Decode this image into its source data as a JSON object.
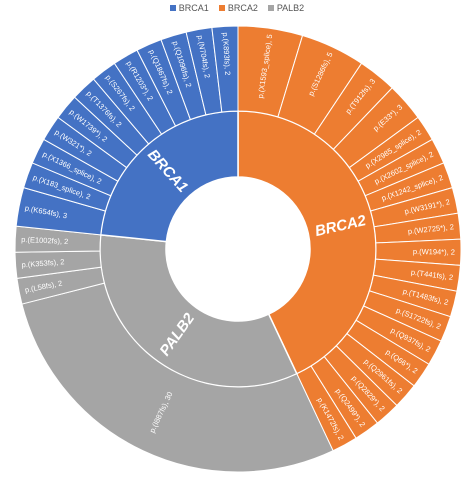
{
  "chart_data": {
    "type": "sunburst",
    "legend_position": "top",
    "legend": [
      {
        "label": "BRCA1",
        "color": "#4472C4"
      },
      {
        "label": "BRCA2",
        "color": "#ED7D31"
      },
      {
        "label": "PALB2",
        "color": "#A5A5A5"
      }
    ],
    "groups": [
      {
        "name": "BRCA2",
        "color": "#ED7D31",
        "children": [
          {
            "label": "p.(X1593_splice), 5",
            "value": 5
          },
          {
            "label": "p.(S1286fs), 5",
            "value": 5
          },
          {
            "label": "p.(T912fs), 3",
            "value": 3
          },
          {
            "label": "p.(E33*), 3",
            "value": 3
          },
          {
            "label": "p.(X2985_splice), 2",
            "value": 2
          },
          {
            "label": "p.(X2602_splice), 2",
            "value": 2
          },
          {
            "label": "p.(X1242_splice), 2",
            "value": 2
          },
          {
            "label": "p.(W3191*), 2",
            "value": 2
          },
          {
            "label": "p.(W2725*), 2",
            "value": 2
          },
          {
            "label": "p.(W194*), 2",
            "value": 2
          },
          {
            "label": "p.(T441fs), 2",
            "value": 2
          },
          {
            "label": "p.(T1483fs), 2",
            "value": 2
          },
          {
            "label": "p.(S1722fs), 2",
            "value": 2
          },
          {
            "label": "p.(Q937fs), 2",
            "value": 2
          },
          {
            "label": "p.(Q66*), 2",
            "value": 2
          },
          {
            "label": "p.(Q2961fs), 2",
            "value": 2
          },
          {
            "label": "p.(Q2829*), 2",
            "value": 2
          },
          {
            "label": "p.(Q2499*), 2",
            "value": 2
          },
          {
            "label": "p.(K1472fs), 2",
            "value": 2
          }
        ]
      },
      {
        "name": "PALB2",
        "color": "#A5A5A5",
        "children": [
          {
            "label": "p.(I887fs), 30",
            "value": 30
          },
          {
            "label": "p.(L58fs), 2",
            "value": 2
          },
          {
            "label": "p.(K353fs), 2",
            "value": 2
          },
          {
            "label": "p.(E1002fs), 2",
            "value": 2
          }
        ]
      },
      {
        "name": "BRCA1",
        "color": "#4472C4",
        "children": [
          {
            "label": "p.(K654fs), 3",
            "value": 3
          },
          {
            "label": "p.(X183_splice), 2",
            "value": 2
          },
          {
            "label": "p.(X1366_splice), 2",
            "value": 2
          },
          {
            "label": "p.(W321*), 2",
            "value": 2
          },
          {
            "label": "p.(W1739*), 2",
            "value": 2
          },
          {
            "label": "p.(T1376fs), 2",
            "value": 2
          },
          {
            "label": "p.(S267fs), 2",
            "value": 2
          },
          {
            "label": "p.(R1203*), 2",
            "value": 2
          },
          {
            "label": "p.(Q1867fs), 2",
            "value": 2
          },
          {
            "label": "p.(Q1096fs), 2",
            "value": 2
          },
          {
            "label": "p.(N704fs), 2",
            "value": 2
          },
          {
            "label": "p.(K893fs), 2",
            "value": 2
          }
        ]
      }
    ]
  }
}
